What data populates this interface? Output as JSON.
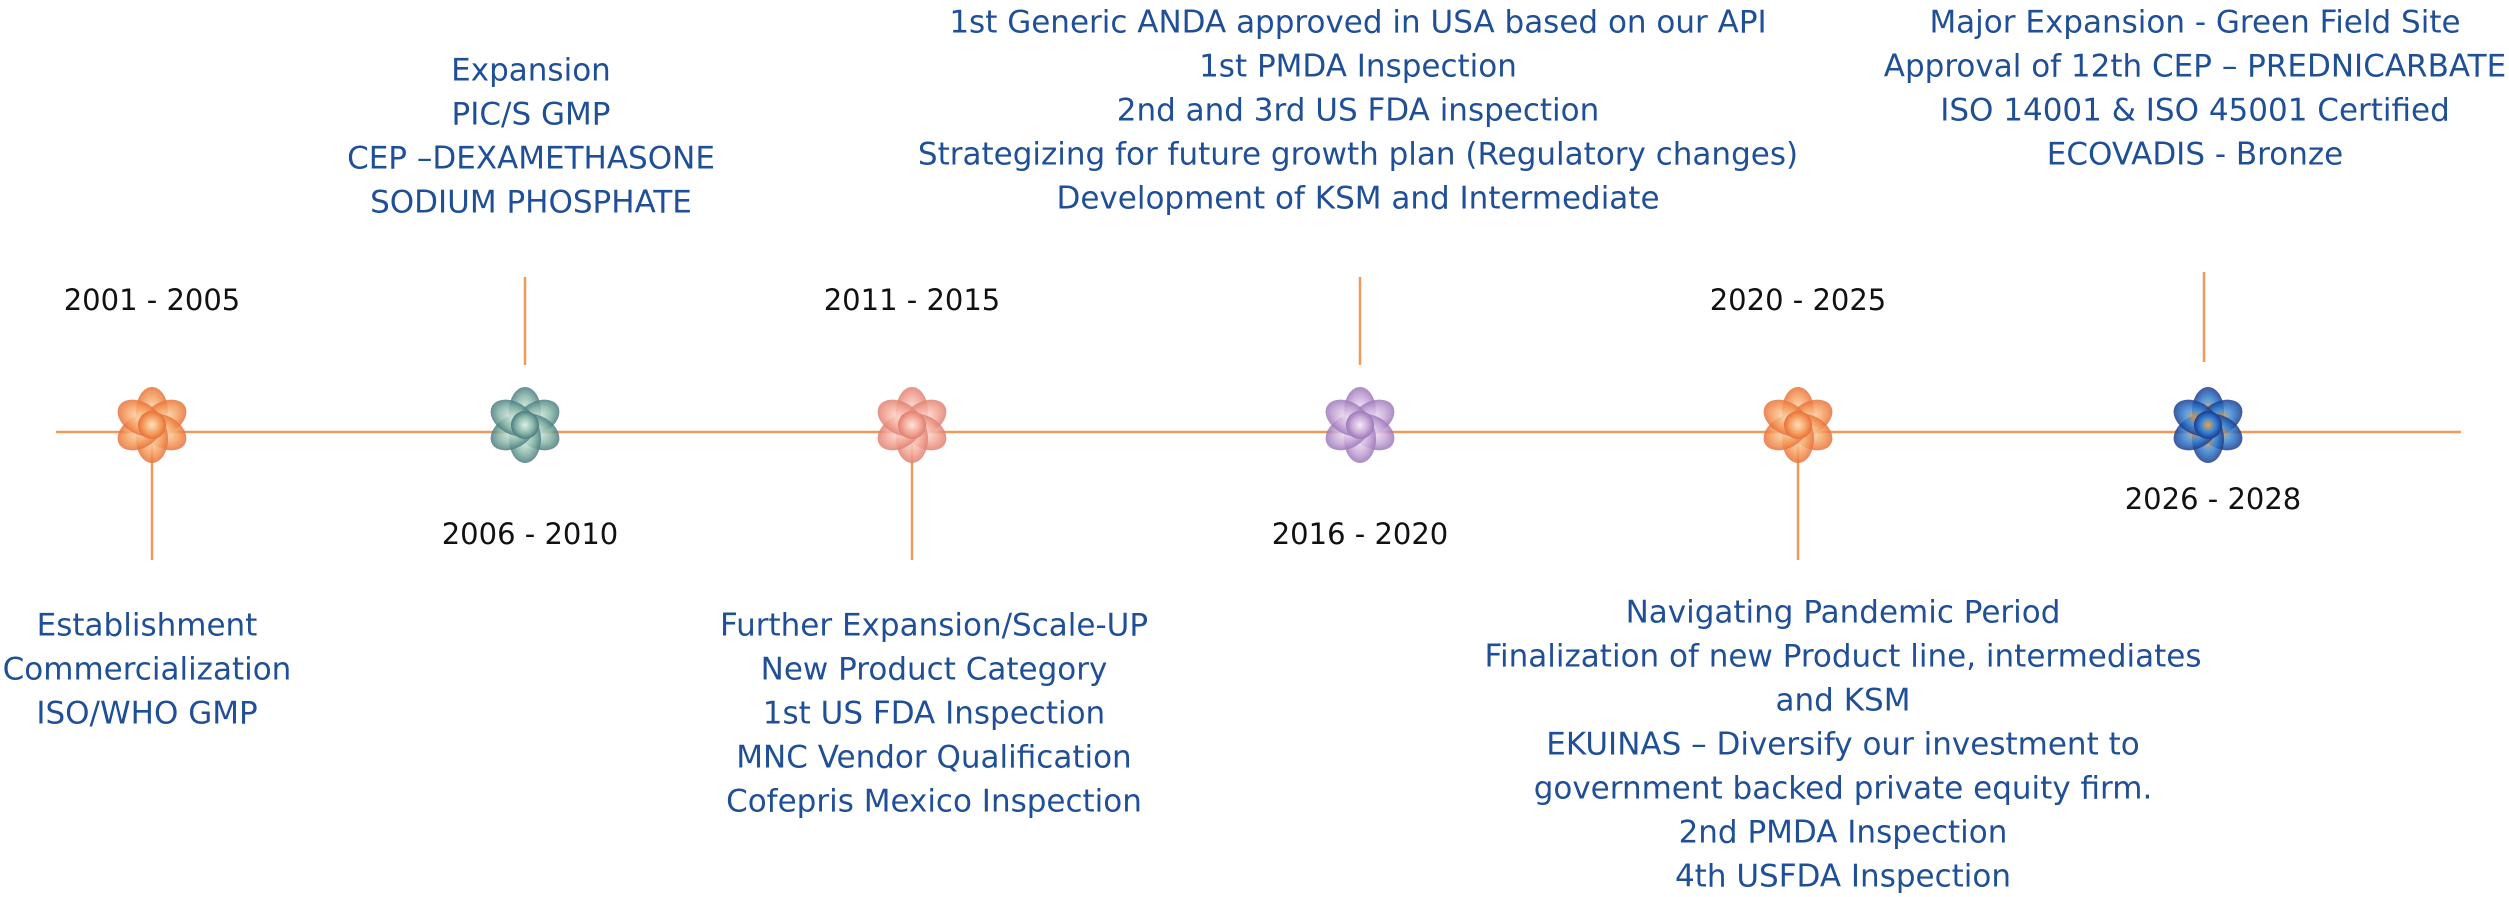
{
  "milestones": [
    {
      "period": "2001 - 2005",
      "items": [
        "Establishment",
        "Commercialization",
        "ISO/WHO GMP"
      ]
    },
    {
      "period": "2006 - 2010",
      "items": [
        "Expansion",
        "PIC/S GMP",
        "CEP –DEXAMETHASONE",
        "SODIUM PHOSPHATE"
      ]
    },
    {
      "period": "2011 - 2015",
      "items": [
        "Further Expansion/Scale-UP",
        "New Product Category",
        "1st US FDA Inspection",
        "MNC Vendor Qualification",
        "Cofepris Mexico Inspection"
      ]
    },
    {
      "period": "2016 - 2020",
      "items": [
        "1st Generic ANDA approved in USA based on our API",
        "1st PMDA Inspection",
        "2nd and 3rd  US FDA inspection",
        "Strategizing for future growth plan (Regulatory changes)",
        "Development of KSM and Intermediate"
      ]
    },
    {
      "period": "2020 - 2025",
      "items": [
        "Navigating Pandemic Period",
        "Finalization of new Product line, intermediates",
        "and KSM",
        "EKUINAS – Diversify our investment to",
        "government backed private equity firm.",
        "2nd PMDA Inspection",
        "4th USFDA Inspection"
      ]
    },
    {
      "period": "2026 - 2028",
      "items": [
        "Major  Expansion - Green Field Site",
        "Approval of 12th CEP – PREDNICARBATE",
        "ISO 14001 & ISO 45001 Certified",
        "ECOVADIS - Bronze"
      ]
    }
  ]
}
